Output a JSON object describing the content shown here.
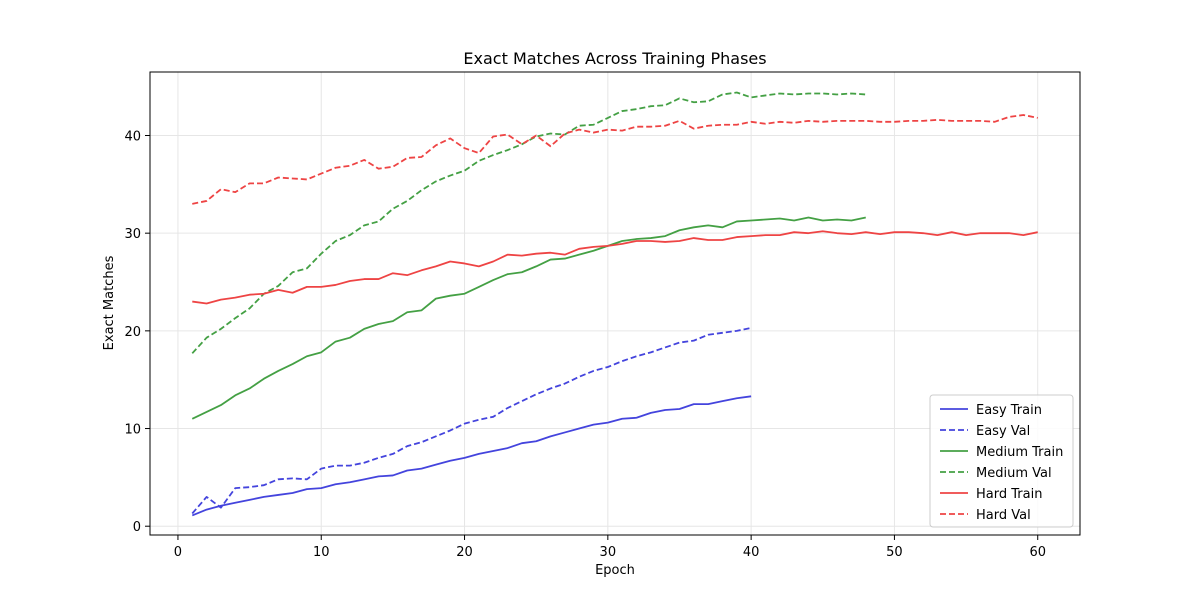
{
  "chart_data": {
    "type": "line",
    "title": "Exact Matches Across Training Phases",
    "xlabel": "Epoch",
    "ylabel": "Exact Matches",
    "xlim": [
      -1.95,
      62.95
    ],
    "ylim": [
      -0.9,
      46.5
    ],
    "xticks": [
      0,
      10,
      20,
      30,
      40,
      50,
      60
    ],
    "yticks": [
      0,
      10,
      20,
      30,
      40
    ],
    "grid": true,
    "legend_position": "lower-right",
    "series": [
      {
        "name": "Easy Train",
        "color": "#4444dd",
        "dash": "solid",
        "x": [
          1,
          2,
          3,
          4,
          5,
          6,
          7,
          8,
          9,
          10,
          11,
          12,
          13,
          14,
          15,
          16,
          17,
          18,
          19,
          20,
          21,
          22,
          23,
          24,
          25,
          26,
          27,
          28,
          29,
          30,
          31,
          32,
          33,
          34,
          35,
          36,
          37,
          38,
          39,
          40
        ],
        "y": [
          1.1,
          1.7,
          2.1,
          2.4,
          2.7,
          3.0,
          3.2,
          3.4,
          3.8,
          3.9,
          4.3,
          4.5,
          4.8,
          5.1,
          5.2,
          5.7,
          5.9,
          6.3,
          6.7,
          7.0,
          7.4,
          7.7,
          8.0,
          8.5,
          8.7,
          9.2,
          9.6,
          10.0,
          10.4,
          10.6,
          11.0,
          11.1,
          11.6,
          11.9,
          12.0,
          12.5,
          12.5,
          12.8,
          13.1,
          13.3
        ]
      },
      {
        "name": "Easy Val",
        "color": "#4444dd",
        "dash": "dashed",
        "x": [
          1,
          2,
          3,
          4,
          5,
          6,
          7,
          8,
          9,
          10,
          11,
          12,
          13,
          14,
          15,
          16,
          17,
          18,
          19,
          20,
          21,
          22,
          23,
          24,
          25,
          26,
          27,
          28,
          29,
          30,
          31,
          32,
          33,
          34,
          35,
          36,
          37,
          38,
          39,
          40
        ],
        "y": [
          1.3,
          3.0,
          1.9,
          3.9,
          4.0,
          4.2,
          4.8,
          4.9,
          4.8,
          5.9,
          6.2,
          6.2,
          6.5,
          7.0,
          7.4,
          8.2,
          8.6,
          9.2,
          9.8,
          10.5,
          10.9,
          11.2,
          12.1,
          12.8,
          13.5,
          14.1,
          14.6,
          15.3,
          15.9,
          16.3,
          16.9,
          17.4,
          17.8,
          18.3,
          18.8,
          19.0,
          19.6,
          19.8,
          20.0,
          20.3
        ]
      },
      {
        "name": "Medium Train",
        "color": "#44a044",
        "dash": "solid",
        "x": [
          1,
          2,
          3,
          4,
          5,
          6,
          7,
          8,
          9,
          10,
          11,
          12,
          13,
          14,
          15,
          16,
          17,
          18,
          19,
          20,
          21,
          22,
          23,
          24,
          25,
          26,
          27,
          28,
          29,
          30,
          31,
          32,
          33,
          34,
          35,
          36,
          37,
          38,
          39,
          40,
          41,
          42,
          43,
          44,
          45,
          46,
          47,
          48
        ],
        "y": [
          11.0,
          11.7,
          12.4,
          13.4,
          14.1,
          15.1,
          15.9,
          16.6,
          17.4,
          17.8,
          18.9,
          19.3,
          20.2,
          20.7,
          21.0,
          21.9,
          22.1,
          23.3,
          23.6,
          23.8,
          24.5,
          25.2,
          25.8,
          26.0,
          26.6,
          27.3,
          27.4,
          27.8,
          28.2,
          28.7,
          29.2,
          29.4,
          29.5,
          29.7,
          30.3,
          30.6,
          30.8,
          30.6,
          31.2,
          31.3,
          31.4,
          31.5,
          31.3,
          31.6,
          31.3,
          31.4,
          31.3,
          31.6
        ]
      },
      {
        "name": "Medium Val",
        "color": "#44a044",
        "dash": "dashed",
        "x": [
          1,
          2,
          3,
          4,
          5,
          6,
          7,
          8,
          9,
          10,
          11,
          12,
          13,
          14,
          15,
          16,
          17,
          18,
          19,
          20,
          21,
          22,
          23,
          24,
          25,
          26,
          27,
          28,
          29,
          30,
          31,
          32,
          33,
          34,
          35,
          36,
          37,
          38,
          39,
          40,
          41,
          42,
          43,
          44,
          45,
          46,
          47,
          48
        ],
        "y": [
          17.7,
          19.3,
          20.2,
          21.3,
          22.3,
          23.8,
          24.6,
          26.0,
          26.4,
          27.9,
          29.2,
          29.8,
          30.8,
          31.2,
          32.5,
          33.3,
          34.4,
          35.3,
          35.9,
          36.4,
          37.4,
          38.0,
          38.5,
          39.1,
          39.9,
          40.2,
          40.1,
          41.0,
          41.1,
          41.8,
          42.5,
          42.7,
          43.0,
          43.1,
          43.8,
          43.4,
          43.5,
          44.2,
          44.4,
          43.9,
          44.1,
          44.3,
          44.2,
          44.3,
          44.3,
          44.2,
          44.3,
          44.2
        ]
      },
      {
        "name": "Hard Train",
        "color": "#ee4444",
        "dash": "solid",
        "x": [
          1,
          2,
          3,
          4,
          5,
          6,
          7,
          8,
          9,
          10,
          11,
          12,
          13,
          14,
          15,
          16,
          17,
          18,
          19,
          20,
          21,
          22,
          23,
          24,
          25,
          26,
          27,
          28,
          29,
          30,
          31,
          32,
          33,
          34,
          35,
          36,
          37,
          38,
          39,
          40,
          41,
          42,
          43,
          44,
          45,
          46,
          47,
          48,
          49,
          50,
          51,
          52,
          53,
          54,
          55,
          56,
          57,
          58,
          59,
          60
        ],
        "y": [
          23.0,
          22.8,
          23.2,
          23.4,
          23.7,
          23.8,
          24.2,
          23.9,
          24.5,
          24.5,
          24.7,
          25.1,
          25.3,
          25.3,
          25.9,
          25.7,
          26.2,
          26.6,
          27.1,
          26.9,
          26.6,
          27.1,
          27.8,
          27.7,
          27.9,
          28.0,
          27.8,
          28.4,
          28.6,
          28.7,
          28.9,
          29.2,
          29.2,
          29.1,
          29.2,
          29.5,
          29.3,
          29.3,
          29.6,
          29.7,
          29.8,
          29.8,
          30.1,
          30.0,
          30.2,
          30.0,
          29.9,
          30.1,
          29.9,
          30.1,
          30.1,
          30.0,
          29.8,
          30.1,
          29.8,
          30.0,
          30.0,
          30.0,
          29.8,
          30.1
        ]
      },
      {
        "name": "Hard Val",
        "color": "#ee4444",
        "dash": "dashed",
        "x": [
          1,
          2,
          3,
          4,
          5,
          6,
          7,
          8,
          9,
          10,
          11,
          12,
          13,
          14,
          15,
          16,
          17,
          18,
          19,
          20,
          21,
          22,
          23,
          24,
          25,
          26,
          27,
          28,
          29,
          30,
          31,
          32,
          33,
          34,
          35,
          36,
          37,
          38,
          39,
          40,
          41,
          42,
          43,
          44,
          45,
          46,
          47,
          48,
          49,
          50,
          51,
          52,
          53,
          54,
          55,
          56,
          57,
          58,
          59,
          60
        ],
        "y": [
          33.0,
          33.3,
          34.5,
          34.2,
          35.1,
          35.1,
          35.7,
          35.6,
          35.5,
          36.1,
          36.7,
          36.9,
          37.5,
          36.6,
          36.8,
          37.7,
          37.8,
          39.0,
          39.7,
          38.7,
          38.2,
          39.9,
          40.1,
          39.1,
          40.0,
          38.9,
          40.2,
          40.6,
          40.3,
          40.6,
          40.5,
          40.9,
          40.9,
          41.0,
          41.5,
          40.7,
          41.0,
          41.1,
          41.1,
          41.4,
          41.2,
          41.4,
          41.3,
          41.5,
          41.4,
          41.5,
          41.5,
          41.5,
          41.4,
          41.4,
          41.5,
          41.5,
          41.6,
          41.5,
          41.5,
          41.5,
          41.4,
          41.9,
          42.1,
          41.8
        ]
      }
    ]
  }
}
